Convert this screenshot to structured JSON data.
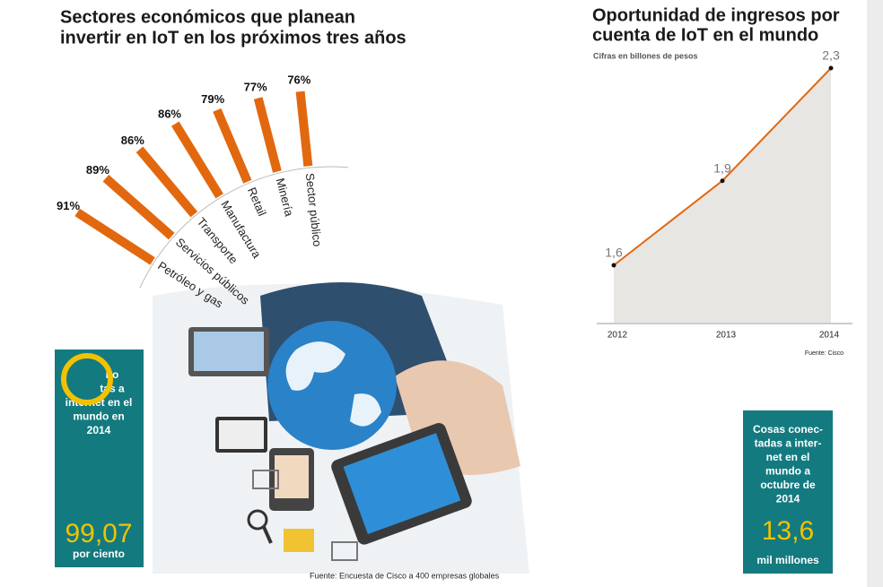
{
  "chart_data": [
    {
      "type": "radial-bar",
      "title": [
        "Sectores económicos que planean",
        "invertir en IoT en los próximos tres años"
      ],
      "categories": [
        "Petróleo y gas",
        "Servicios públicos",
        "Transporte",
        "Manufactura",
        "Retail",
        "Minería",
        "Sector público"
      ],
      "values": [
        91,
        89,
        86,
        86,
        79,
        77,
        76
      ],
      "value_labels": [
        "91%",
        "89%",
        "86%",
        "86%",
        "79%",
        "77%",
        "76%"
      ],
      "color": "#e2680f",
      "source": "Fuente: Encuesta de Cisco a 400 empresas globales"
    },
    {
      "type": "area-line",
      "title": [
        "Oportunidad de ingresos por",
        "cuenta de IoT en el mundo"
      ],
      "subtitle": "Cifras en billones de pesos",
      "categories": [
        "2012",
        "2013",
        "2014"
      ],
      "values": [
        1.6,
        1.9,
        2.3
      ],
      "value_labels": [
        "1,6",
        "1,9",
        "2,3"
      ],
      "color": "#e2680f",
      "fill": "#e8e6e3",
      "source": "Fuente: Cisco"
    }
  ],
  "boxes": [
    {
      "lines": [
        "no",
        "tas a",
        "internet en el",
        "mundo en",
        "2014"
      ],
      "number": "99,07",
      "unit": "por ciento"
    },
    {
      "lines": [
        "Cosas conec-",
        "tadas a inter-",
        "net en el",
        "mundo a",
        "octubre de",
        "2014"
      ],
      "number": "13,6",
      "unit": "mil millones"
    }
  ]
}
